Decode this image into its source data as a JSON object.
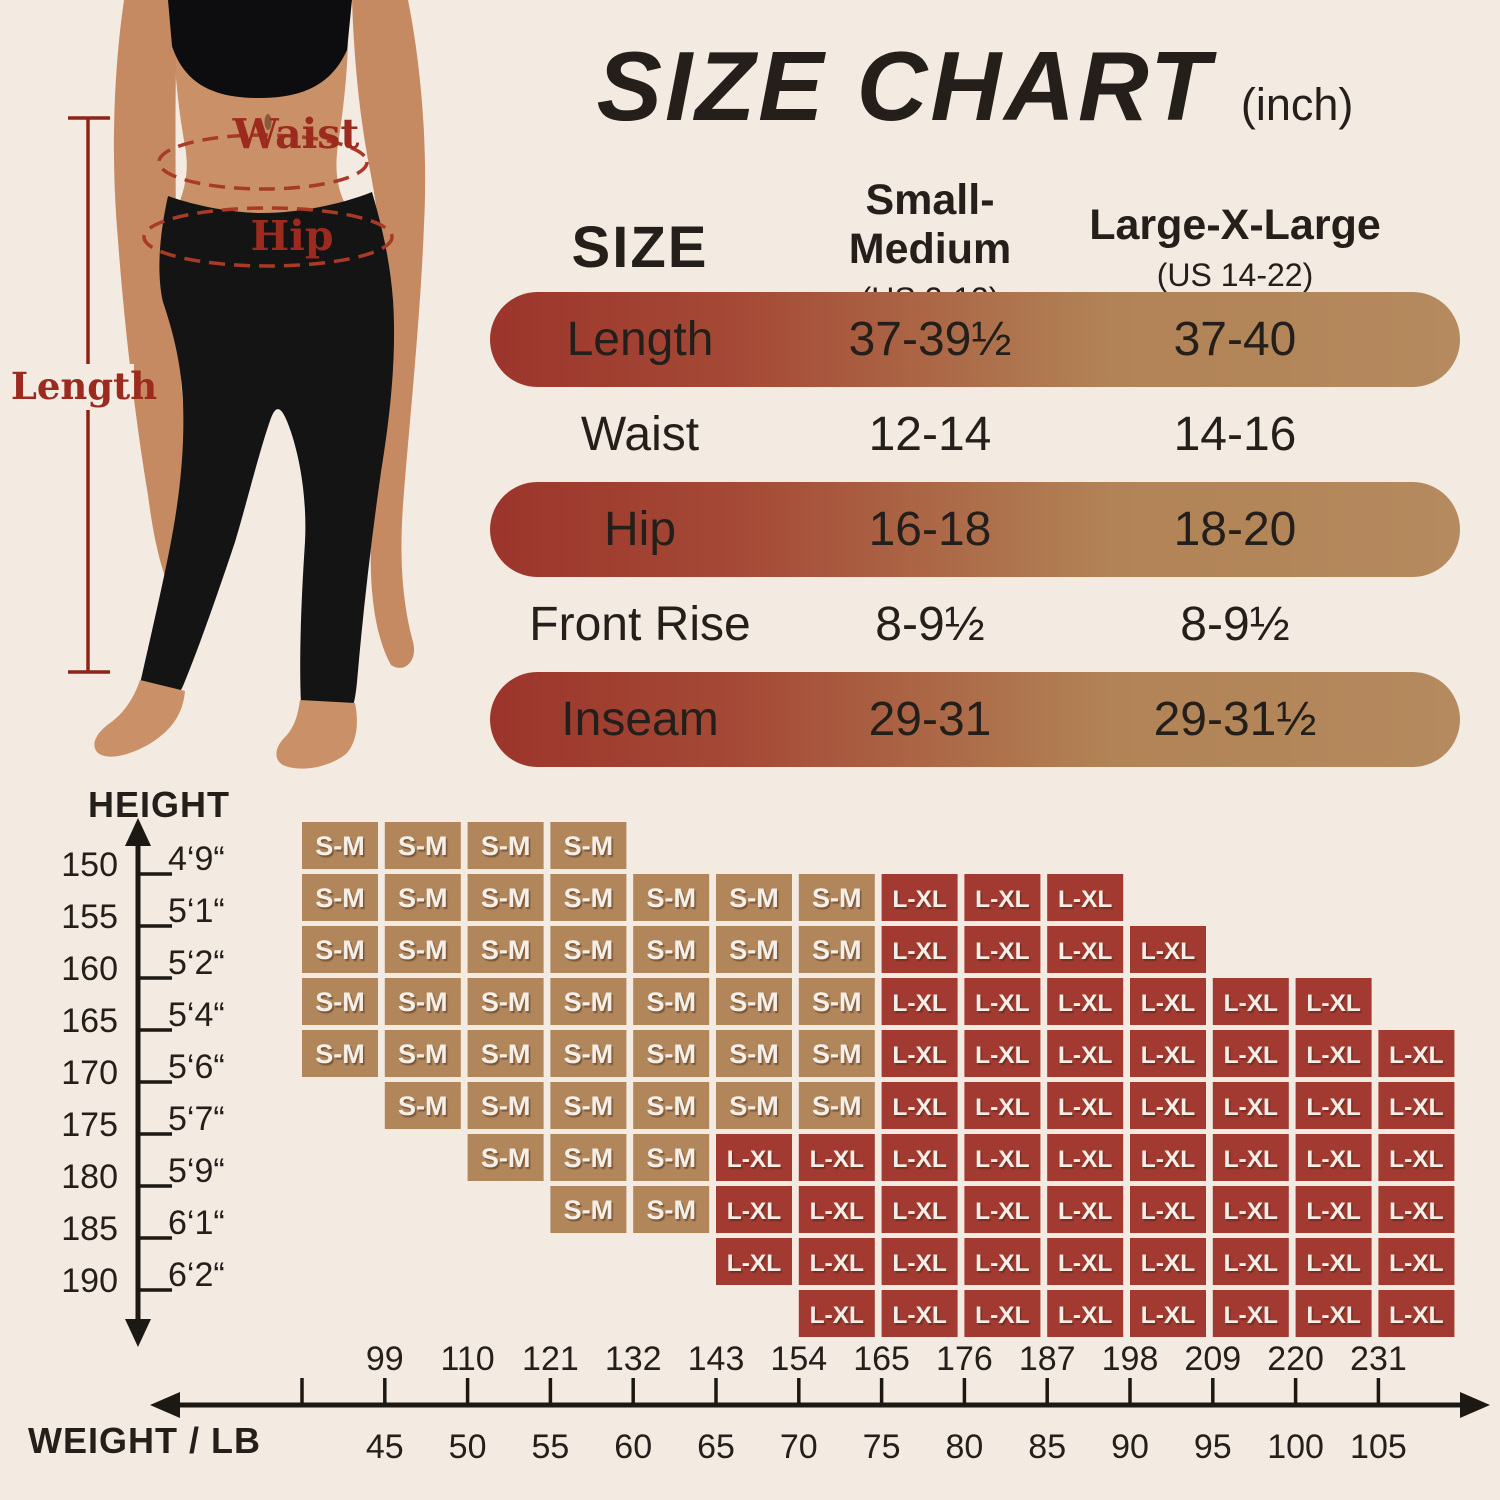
{
  "title": {
    "main": "SIZE CHART",
    "unit": "(inch)"
  },
  "model": {
    "waist_label": "Waist",
    "hip_label": "Hip",
    "length_label": "Length"
  },
  "size_table": {
    "header": {
      "size": "SIZE",
      "col1_name": "Small-Medium",
      "col1_sub": "(US 2-12)",
      "col2_name": "Large-X-Large",
      "col2_sub": "(US 14-22)"
    }
  },
  "chart_data": [
    {
      "type": "table",
      "title": "SIZE CHART (inch)",
      "columns": [
        "SIZE",
        "Small-Medium (US 2-12)",
        "Large-X-Large (US 14-22)"
      ],
      "rows": [
        [
          "Length",
          "37-39½",
          "37-40"
        ],
        [
          "Waist",
          "12-14",
          "14-16"
        ],
        [
          "Hip",
          "16-18",
          "18-20"
        ],
        [
          "Front Rise",
          "8-9½",
          "8-9½"
        ],
        [
          "Inseam",
          "29-31",
          "29-31½"
        ]
      ]
    },
    {
      "type": "heatmap",
      "xlabel": "WEIGHT / LB",
      "ylabel": "HEIGHT",
      "x_ticks_lb": [
        "99",
        "110",
        "121",
        "132",
        "143",
        "154",
        "165",
        "176",
        "187",
        "198",
        "209",
        "220",
        "231"
      ],
      "x_ticks_kg": [
        "45",
        "50",
        "55",
        "60",
        "65",
        "70",
        "75",
        "80",
        "85",
        "90",
        "95",
        "100",
        "105"
      ],
      "y_ticks_cm": [
        "150",
        "155",
        "160",
        "165",
        "170",
        "175",
        "180",
        "185",
        "190"
      ],
      "y_ticks_ft": [
        "4‘9“",
        "5‘1“",
        "5‘2“",
        "5‘4“",
        "5‘6“",
        "5‘7“",
        "5‘9“",
        "6‘1“",
        "6‘2“"
      ],
      "n_cols": 14,
      "n_rows": 10,
      "cell_labels": {
        "sm": "S-M",
        "lxl": "L-XL"
      },
      "colors": {
        "sm": "#b0865a",
        "lxl": "#a33a31",
        "background": "#f3eae1",
        "pill_gradient_left": "#9c352c",
        "pill_gradient_right": "#b48a5e",
        "annotation_red": "#9c2a1e"
      },
      "cells": [
        {
          "sm": [
            1,
            4
          ]
        },
        {
          "sm": [
            1,
            7
          ],
          "lxl": [
            8,
            10
          ]
        },
        {
          "sm": [
            1,
            7
          ],
          "lxl": [
            8,
            11
          ]
        },
        {
          "sm": [
            1,
            7
          ],
          "lxl": [
            8,
            13
          ]
        },
        {
          "sm": [
            1,
            7
          ],
          "lxl": [
            8,
            14
          ]
        },
        {
          "sm": [
            2,
            7
          ],
          "lxl": [
            8,
            14
          ]
        },
        {
          "sm": [
            3,
            5
          ],
          "lxl": [
            6,
            14
          ]
        },
        {
          "sm": [
            4,
            5
          ],
          "lxl": [
            6,
            14
          ]
        },
        {
          "lxl": [
            6,
            14
          ]
        },
        {
          "lxl": [
            7,
            14
          ]
        }
      ]
    }
  ]
}
